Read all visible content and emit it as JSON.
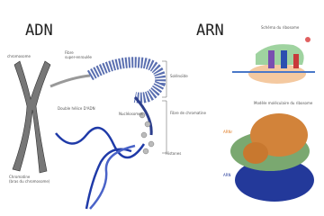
{
  "left": {
    "title": "ADN",
    "labels": {
      "chromosome": "chromosome",
      "supercoil": "Fibre\nsuper-enroulée",
      "solenoid": "Solénoïde",
      "double_helix": "Double hélice D'ADN",
      "nucleosomes": "Nucléosomes",
      "chromatin_fiber": "Fibre de chromatine",
      "histones": "Histones",
      "chromatin_arm": "Chromatine\n(bras du chromosome)"
    }
  },
  "right": {
    "title": "ARN",
    "schema_title": "Schéma du ribosome",
    "model_title": "Modèle moléculaire du ribosome",
    "rrna_label": "ARNr",
    "rna_label": "ARN"
  }
}
